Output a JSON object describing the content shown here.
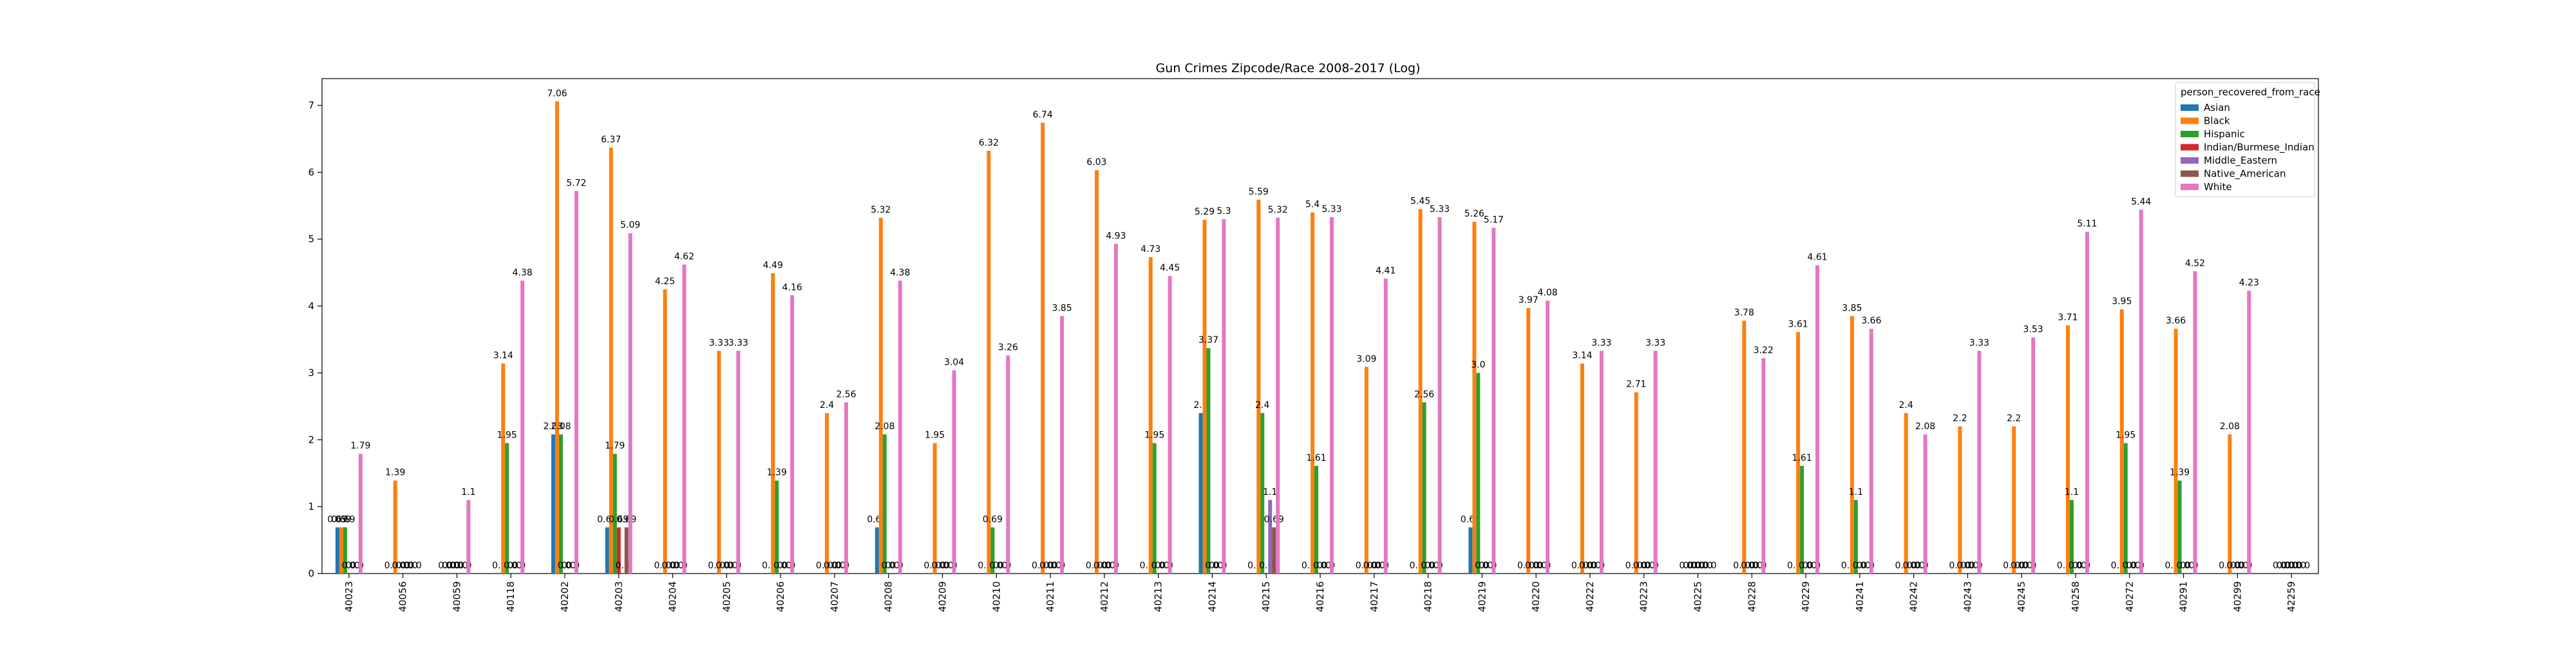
{
  "chart_data": {
    "type": "bar",
    "title": "Gun Crimes Zipcode/Race 2008-2017 (Log)",
    "xlabel": "",
    "ylabel": "",
    "ylim": [
      0,
      7.4
    ],
    "yticks": [
      0,
      1,
      2,
      3,
      4,
      5,
      6,
      7
    ],
    "grid": false,
    "legend_title": "person_recovered_from_race",
    "legend_position": "top-right",
    "categories": [
      "40023",
      "40056",
      "40059",
      "40118",
      "40202",
      "40203",
      "40204",
      "40205",
      "40206",
      "40207",
      "40208",
      "40209",
      "40210",
      "40211",
      "40212",
      "40213",
      "40214",
      "40215",
      "40216",
      "40217",
      "40218",
      "40219",
      "40220",
      "40222",
      "40223",
      "40225",
      "40228",
      "40229",
      "40241",
      "40242",
      "40243",
      "40245",
      "40258",
      "40272",
      "40291",
      "40299",
      "42259"
    ],
    "series": [
      {
        "name": "Asian",
        "color": "#1f77b4",
        "values": [
          0.69,
          0,
          0,
          0,
          2.08,
          0.69,
          0,
          0,
          0,
          0,
          0.69,
          0,
          0,
          0,
          0,
          0,
          2.4,
          0,
          0,
          0,
          0,
          0.69,
          0,
          0,
          0,
          0,
          0,
          0,
          0,
          0,
          0,
          0,
          0,
          0,
          0,
          0,
          0
        ],
        "labels": [
          "0.69",
          "0.0",
          "0.0",
          "0.0",
          "2.08",
          "0.69",
          "0.0",
          "0.0",
          "0.0",
          "0.0",
          "0.69",
          "0.0",
          "0.0",
          "0.0",
          "0.0",
          "0.0",
          "2.4",
          "0.0",
          "0.0",
          "0.0",
          "0.0",
          "0.69",
          "0.0",
          "0.0",
          "0.0",
          "0.0",
          "0.0",
          "0.0",
          "0.0",
          "0.0",
          "0.0",
          "0.0",
          "0.0",
          "0.0",
          "0.0",
          "0.0",
          "0.0"
        ]
      },
      {
        "name": "Black",
        "color": "#ff7f0e",
        "values": [
          0.69,
          1.39,
          0,
          3.14,
          7.06,
          6.37,
          4.25,
          3.33,
          4.49,
          2.4,
          5.32,
          1.95,
          6.32,
          6.74,
          6.03,
          4.73,
          5.29,
          5.59,
          5.4,
          3.09,
          5.45,
          5.26,
          3.97,
          3.14,
          2.71,
          0,
          3.78,
          3.61,
          3.85,
          2.4,
          2.2,
          2.2,
          3.71,
          3.95,
          3.66,
          2.08,
          0
        ],
        "labels": [
          "0.69",
          "1.39",
          "0.0",
          "3.14",
          "7.06",
          "6.37",
          "4.25",
          "3.33",
          "4.49",
          "2.4",
          "5.32",
          "1.95",
          "6.32",
          "6.74",
          "6.03",
          "4.73",
          "5.29",
          "5.59",
          "5.4",
          "3.09",
          "5.45",
          "5.26",
          "3.97",
          "3.14",
          "2.71",
          "0.0",
          "3.78",
          "3.61",
          "3.85",
          "2.4",
          "2.2",
          "2.2",
          "3.71",
          "3.95",
          "3.66",
          "2.08",
          "0.0"
        ]
      },
      {
        "name": "Hispanic",
        "color": "#2ca02c",
        "values": [
          0.69,
          0,
          0,
          1.95,
          2.08,
          1.79,
          0,
          0,
          1.39,
          0,
          2.08,
          0,
          0.69,
          0,
          0,
          1.95,
          3.37,
          2.4,
          1.61,
          0,
          2.56,
          3.0,
          0,
          0,
          0,
          0,
          0,
          1.61,
          1.1,
          0,
          0,
          0,
          1.1,
          1.95,
          1.39,
          0,
          0
        ],
        "labels": [
          "0.69",
          "0.0",
          "0.0",
          "1.95",
          "2.08",
          "1.79",
          "0.0",
          "0.0",
          "1.39",
          "0.0",
          "2.08",
          "0.0",
          "0.69",
          "0.0",
          "0.0",
          "1.95",
          "3.37",
          "2.4",
          "1.61",
          "0.0",
          "2.56",
          "3.0",
          "0.0",
          "0.0",
          "0.0",
          "0.0",
          "0.0",
          "1.61",
          "1.1",
          "0.0",
          "0.0",
          "0.0",
          "1.1",
          "1.95",
          "1.39",
          "0.0",
          "0.0"
        ]
      },
      {
        "name": "Indian/Burmese_Indian",
        "color": "#d62728",
        "values": [
          0,
          0,
          0,
          0,
          0,
          0.69,
          0,
          0,
          0,
          0,
          0,
          0,
          0,
          0,
          0,
          0,
          0,
          0,
          0,
          0,
          0,
          0,
          0,
          0,
          0,
          0,
          0,
          0,
          0,
          0,
          0,
          0,
          0,
          0,
          0,
          0,
          0
        ],
        "labels": [
          "0.0",
          "0.0",
          "0.0",
          "0.0",
          "0.0",
          "0.69",
          "0.0",
          "0.0",
          "0.0",
          "0.0",
          "0.0",
          "0.0",
          "0.0",
          "0.0",
          "0.0",
          "0.0",
          "0.0",
          "0.0",
          "0.0",
          "0.0",
          "0.0",
          "0.0",
          "0.0",
          "0.0",
          "0.0",
          "0.0",
          "0.0",
          "0.0",
          "0.0",
          "0.0",
          "0.0",
          "0.0",
          "0.0",
          "0.0",
          "0.0",
          "0.0",
          "0.0"
        ]
      },
      {
        "name": "Middle_Eastern",
        "color": "#9467bd",
        "values": [
          0,
          0,
          0,
          0,
          0,
          0,
          0,
          0,
          0,
          0,
          0,
          0,
          0,
          0,
          0,
          0,
          0,
          1.1,
          0,
          0,
          0,
          0,
          0,
          0,
          0,
          0,
          0,
          0,
          0,
          0,
          0,
          0,
          0,
          0,
          0,
          0,
          0
        ],
        "labels": [
          "0.0",
          "0.0",
          "0.0",
          "0.0",
          "0.0",
          "0.0",
          "0.0",
          "0.0",
          "0.0",
          "0.0",
          "0.0",
          "0.0",
          "0.0",
          "0.0",
          "0.0",
          "0.0",
          "0.0",
          "1.1",
          "0.0",
          "0.0",
          "0.0",
          "0.0",
          "0.0",
          "0.0",
          "0.0",
          "0.0",
          "0.0",
          "0.0",
          "0.0",
          "0.0",
          "0.0",
          "0.0",
          "0.0",
          "0.0",
          "0.0",
          "0.0",
          "0.0"
        ]
      },
      {
        "name": "Native_American",
        "color": "#8c564b",
        "values": [
          0,
          0,
          0,
          0,
          0,
          0.69,
          0,
          0,
          0,
          0,
          0,
          0,
          0,
          0,
          0,
          0,
          0,
          0.69,
          0,
          0,
          0,
          0,
          0,
          0,
          0,
          0,
          0,
          0,
          0,
          0,
          0,
          0,
          0,
          0,
          0,
          0,
          0
        ],
        "labels": [
          "0.0",
          "0.0",
          "0.0",
          "0.0",
          "0.0",
          "0.69",
          "0.0",
          "0.0",
          "0.0",
          "0.0",
          "0.0",
          "0.0",
          "0.0",
          "0.0",
          "0.0",
          "0.0",
          "0.0",
          "0.69",
          "0.0",
          "0.0",
          "0.0",
          "0.0",
          "0.0",
          "0.0",
          "0.0",
          "0.0",
          "0.0",
          "0.0",
          "0.0",
          "0.0",
          "0.0",
          "0.0",
          "0.0",
          "0.0",
          "0.0",
          "0.0",
          "0.0"
        ]
      },
      {
        "name": "White",
        "color": "#e377c2",
        "values": [
          1.79,
          0,
          1.1,
          4.38,
          5.72,
          5.09,
          4.62,
          3.33,
          4.16,
          2.56,
          4.38,
          3.04,
          3.26,
          3.85,
          4.93,
          4.45,
          5.3,
          5.32,
          5.33,
          4.41,
          5.33,
          5.17,
          4.08,
          3.33,
          3.33,
          0,
          3.22,
          4.61,
          3.66,
          2.08,
          3.33,
          3.53,
          5.11,
          5.44,
          4.52,
          4.23,
          0
        ],
        "labels": [
          "1.79",
          "0.0",
          "1.1",
          "4.38",
          "5.72",
          "5.09",
          "4.62",
          "3.33",
          "4.16",
          "2.56",
          "4.38",
          "3.04",
          "3.26",
          "3.85",
          "4.93",
          "4.45",
          "5.3",
          "5.32",
          "5.33",
          "4.41",
          "5.33",
          "5.17",
          "4.08",
          "3.33",
          "3.33",
          "0.0",
          "3.22",
          "4.61",
          "3.66",
          "2.08",
          "3.33",
          "3.53",
          "5.11",
          "5.44",
          "4.52",
          "4.23",
          "0.0"
        ]
      }
    ]
  }
}
